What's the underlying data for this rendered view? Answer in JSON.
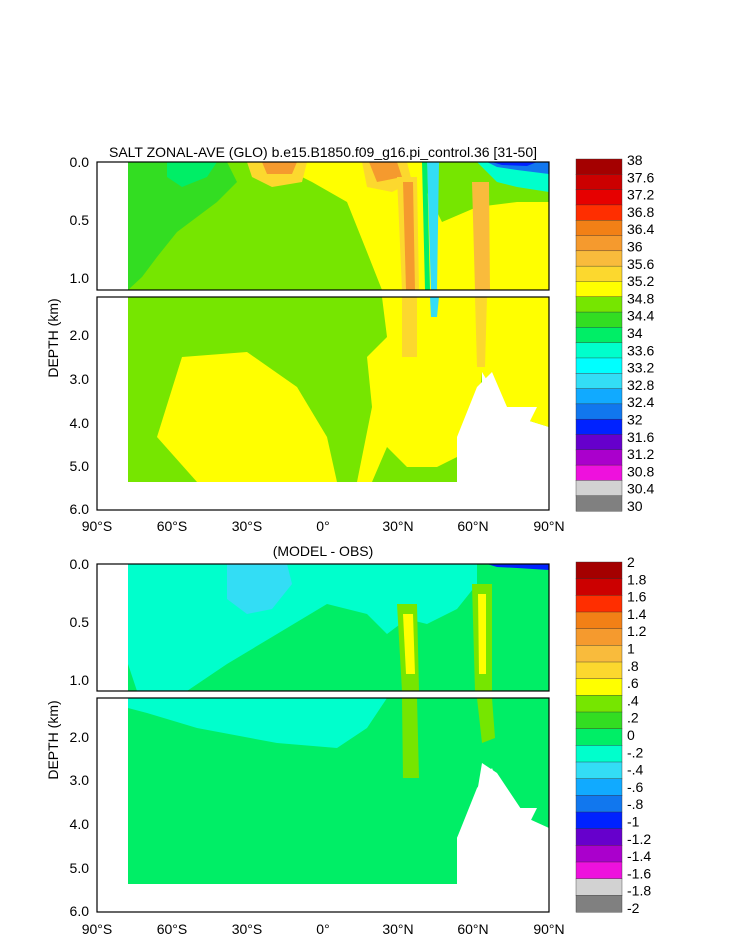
{
  "chart_data": [
    {
      "type": "heatmap",
      "variant": "filled-contour",
      "title": "SALT ZONAL-AVE (GLO) b.e15.B1850.f09_g16.pi_control.36 [31-50]",
      "xlabel": "",
      "ylabel": "DEPTH (km)",
      "x_ticks": [
        "90°S",
        "60°S",
        "30°S",
        "0°",
        "30°N",
        "60°N",
        "90°N"
      ],
      "y_ticks_upper": [
        "0.0",
        "0.5",
        "1.0"
      ],
      "y_ticks_lower": [
        "2.0",
        "3.0",
        "4.0",
        "5.0",
        "6.0"
      ],
      "xlim": [
        -90,
        90
      ],
      "ylim_km": [
        0,
        6
      ],
      "colorbar_levels": [
        "38",
        "37.6",
        "37.2",
        "36.8",
        "36.4",
        "36",
        "35.6",
        "35.2",
        "34.8",
        "34.4",
        "34",
        "33.6",
        "33.2",
        "32.8",
        "32.4",
        "32",
        "31.6",
        "31.2",
        "30.8",
        "30.4",
        "30"
      ],
      "colorbar_colors": [
        "#a40000",
        "#cc0000",
        "#e60000",
        "#ff2e00",
        "#f28016",
        "#f59a2e",
        "#f9bb3c",
        "#fcd82e",
        "#ffff00",
        "#76e600",
        "#33dd22",
        "#00ee66",
        "#00ffcc",
        "#00ffff",
        "#33ddf5",
        "#11aaff",
        "#1177ee",
        "#0022ff",
        "#6600cc",
        "#aa00cc",
        "#ee11dd",
        "#d2d2d2",
        "#808080"
      ]
    },
    {
      "type": "heatmap",
      "variant": "filled-contour",
      "title": "(MODEL - OBS)",
      "xlabel": "",
      "ylabel": "DEPTH (km)",
      "x_ticks": [
        "90°S",
        "60°S",
        "30°S",
        "0°",
        "30°N",
        "60°N",
        "90°N"
      ],
      "y_ticks_upper": [
        "0.0",
        "0.5",
        "1.0"
      ],
      "y_ticks_lower": [
        "2.0",
        "3.0",
        "4.0",
        "5.0",
        "6.0"
      ],
      "xlim": [
        -90,
        90
      ],
      "ylim_km": [
        0,
        6
      ],
      "colorbar_levels": [
        "2",
        "1.8",
        "1.6",
        "1.4",
        "1.2",
        "1",
        ".8",
        ".6",
        ".4",
        ".2",
        "0",
        "-.2",
        "-.4",
        "-.6",
        "-.8",
        "-1",
        "-1.2",
        "-1.4",
        "-1.6",
        "-1.8",
        "-2"
      ],
      "colorbar_colors": [
        "#a40000",
        "#cc0000",
        "#ff2e00",
        "#f28016",
        "#f59a2e",
        "#f9bb3c",
        "#fcd82e",
        "#ffff00",
        "#76e600",
        "#33dd22",
        "#00ee66",
        "#00ffcc",
        "#33ddf5",
        "#11aaff",
        "#1177ee",
        "#0022ff",
        "#6600cc",
        "#aa00cc",
        "#ee11dd",
        "#d2d2d2",
        "#808080"
      ]
    }
  ]
}
